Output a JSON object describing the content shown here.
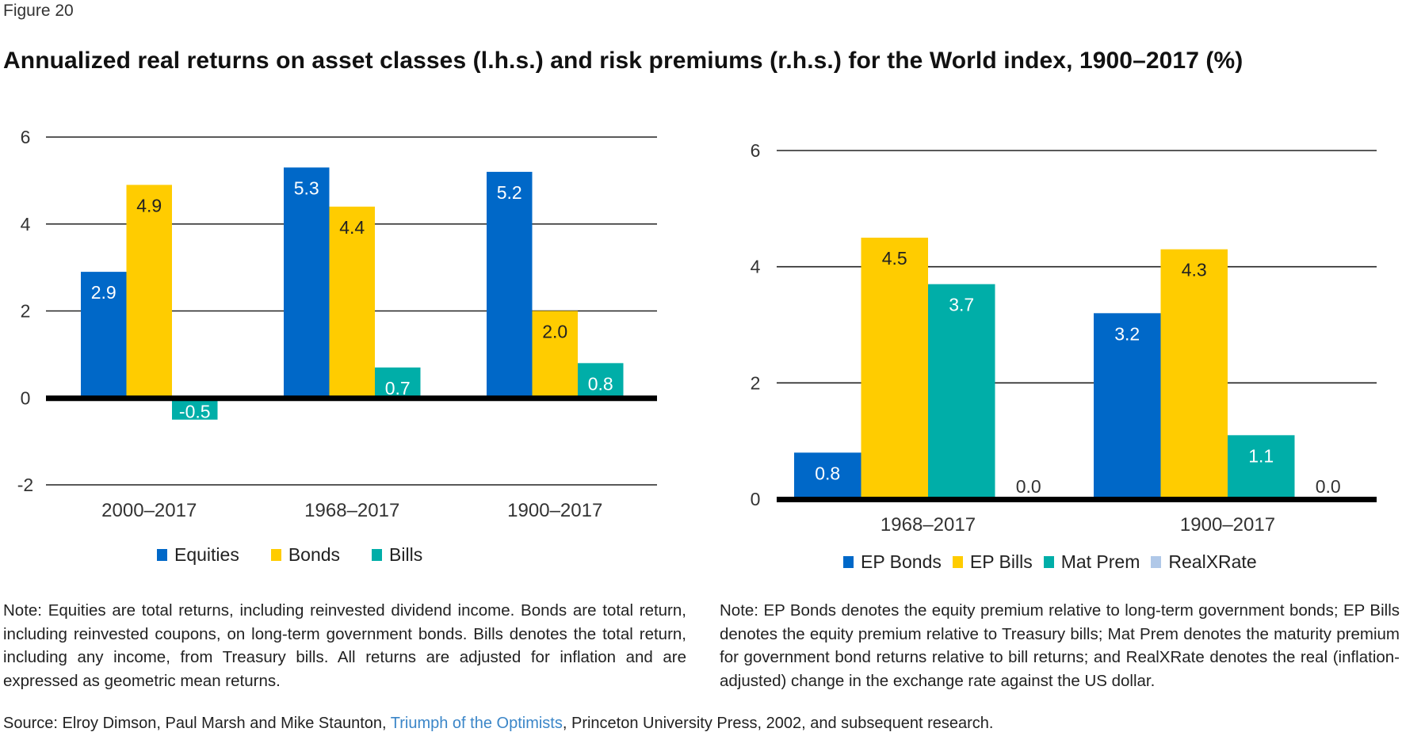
{
  "figure_label": "Figure 20",
  "title": "Annualized real returns on asset classes (l.h.s.) and risk premiums (r.h.s.) for the World index, 1900–2017 (%)",
  "colors": {
    "blue": "#0068c8",
    "yellow": "#ffcc00",
    "teal": "#00aea8",
    "lightblue": "#b0c8e8",
    "axis": "#000000",
    "grid": "#222222",
    "link": "#3b86c8"
  },
  "chart_data": [
    {
      "type": "bar",
      "title": "Annualized real returns on asset classes (l.h.s.)",
      "xlabel": "",
      "ylabel": "",
      "ylim": [
        -2,
        6
      ],
      "yticks": [
        "-2",
        "0",
        "2",
        "4",
        "6"
      ],
      "ytick_values": [
        -2,
        0,
        2,
        4,
        6
      ],
      "grid": true,
      "legend_position": "bottom",
      "categories": [
        "2000–2017",
        "1968–2017",
        "1900–2017"
      ],
      "series": [
        {
          "name": "Equities",
          "color": "#0068c8",
          "label_color": "#ffffff",
          "values": [
            2.9,
            5.3,
            5.2
          ],
          "labels": [
            "2.9",
            "5.3",
            "5.2"
          ]
        },
        {
          "name": "Bonds",
          "color": "#ffcc00",
          "label_color": "#222222",
          "values": [
            4.9,
            4.4,
            2.0
          ],
          "labels": [
            "4.9",
            "4.4",
            "2.0"
          ]
        },
        {
          "name": "Bills",
          "color": "#00aea8",
          "label_color": "#ffffff",
          "values": [
            -0.5,
            0.7,
            0.8
          ],
          "labels": [
            "-0.5",
            "0.7",
            "0.8"
          ]
        }
      ]
    },
    {
      "type": "bar",
      "title": "Risk premiums (r.h.s.)",
      "xlabel": "",
      "ylabel": "",
      "ylim": [
        0,
        6
      ],
      "yticks": [
        "0",
        "2",
        "4",
        "6"
      ],
      "ytick_values": [
        0,
        2,
        4,
        6
      ],
      "grid": true,
      "legend_position": "bottom",
      "categories": [
        "1968–2017",
        "1900–2017"
      ],
      "series": [
        {
          "name": "EP Bonds",
          "color": "#0068c8",
          "label_color": "#ffffff",
          "values": [
            0.8,
            3.2
          ],
          "labels": [
            "0.8",
            "3.2"
          ]
        },
        {
          "name": "EP Bills",
          "color": "#ffcc00",
          "label_color": "#222222",
          "values": [
            4.5,
            4.3
          ],
          "labels": [
            "4.5",
            "4.3"
          ]
        },
        {
          "name": "Mat Prem",
          "color": "#00aea8",
          "label_color": "#ffffff",
          "values": [
            3.7,
            1.1
          ],
          "labels": [
            "3.7",
            "1.1"
          ]
        },
        {
          "name": "RealXRate",
          "color": "#b0c8e8",
          "label_color": "#333333",
          "values": [
            0.0,
            0.0
          ],
          "labels": [
            "0.0",
            "0.0"
          ]
        }
      ]
    }
  ],
  "notes": {
    "left": "Note: Equities are total returns, including reinvested dividend income. Bonds are total return, including reinvested coupons, on long-term government bonds. Bills denotes the total return, including any income, from Treasury bills. All returns are adjusted for inflation and are expressed as geometric mean returns.",
    "right": "Note: EP Bonds denotes the equity premium relative to long-term government bonds; EP Bills denotes the equity premium relative to Treasury bills; Mat Prem denotes the maturity premium for government bond returns relative to bill returns; and RealXRate denotes the real (inflation-adjusted) change in the exchange rate against the US dollar."
  },
  "source": {
    "prefix": "Source: Elroy Dimson, Paul Marsh and Mike Staunton, ",
    "link_text": "Triumph of the Optimists",
    "suffix": ", Princeton University Press, 2002, and subsequent research."
  }
}
